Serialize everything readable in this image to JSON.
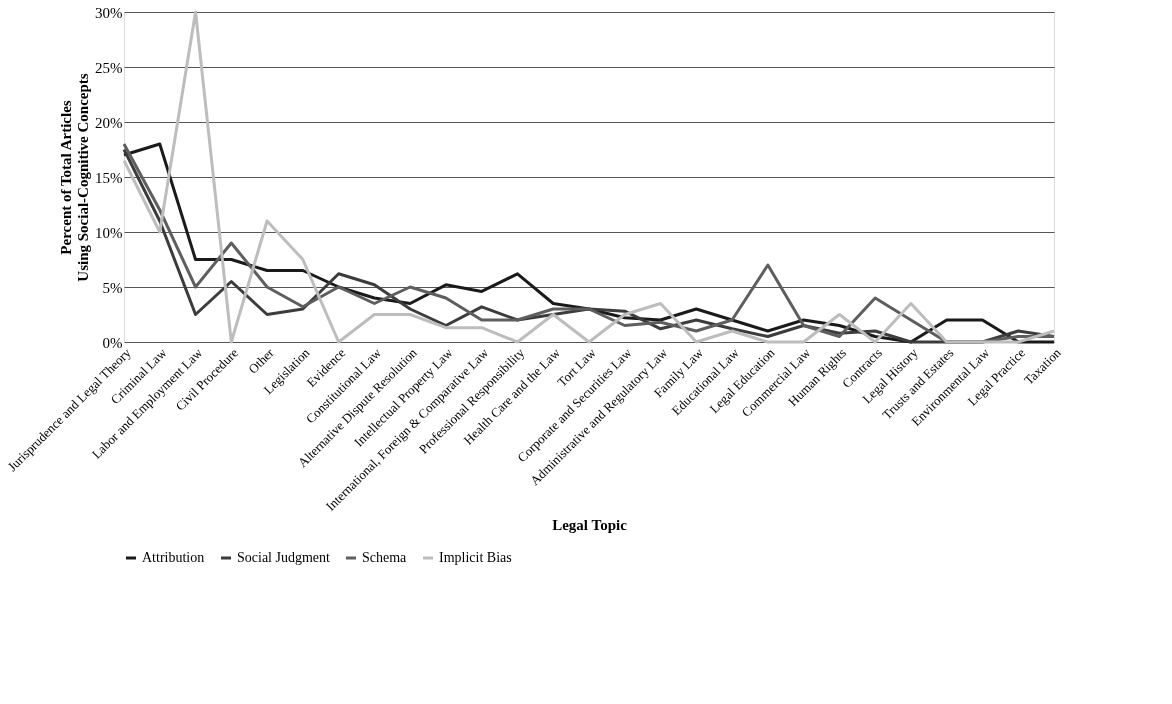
{
  "chart_data": {
    "type": "line",
    "xlabel": "Legal Topic",
    "ylabel": [
      "Percent of Total Articles",
      "Using Social-Cognitive Concepts"
    ],
    "categories": [
      "Jurisprudence and Legal Theory",
      "Criminal Law",
      "Labor and Employment Law",
      "Civil Procedure",
      "Other",
      "Legislation",
      "Evidence",
      "Constitutional Law",
      "Alternative Dispute Resolution",
      "Intellectual Property Law",
      "International, Foreign & Comparative Law",
      "Professional Responsibility",
      "Health Care and the Law",
      "Tort Law",
      "Corporate and Securities Law",
      "Administrative and Regulatory Law",
      "Family Law",
      "Educational Law",
      "Legal Education",
      "Commercial Law",
      "Human Rights",
      "Contracts",
      "Legal History",
      "Trusts and Estates",
      "Environmental Law",
      "Legal Practice",
      "Taxation"
    ],
    "series": [
      {
        "name": "Attribution",
        "color": "#1a1a1a",
        "values": [
          17,
          18,
          7.5,
          7.5,
          6.5,
          6.5,
          5,
          4,
          3.5,
          5.2,
          4.6,
          6.2,
          3.5,
          3,
          2.2,
          2,
          3,
          2,
          1,
          2,
          1.5,
          0.5,
          0,
          2,
          2,
          0,
          0
        ]
      },
      {
        "name": "Social Judgment",
        "color": "#3c3c3c",
        "values": [
          17.5,
          11,
          2.5,
          5.5,
          2.5,
          3,
          6.2,
          5.2,
          3,
          1.5,
          3.2,
          2,
          2.5,
          3,
          2.8,
          1.2,
          2,
          1.2,
          0.5,
          1.5,
          0.8,
          1,
          0,
          0,
          0,
          1,
          0.5
        ]
      },
      {
        "name": "Schema",
        "color": "#5e5e5e",
        "values": [
          18,
          12,
          5,
          9,
          5,
          3.2,
          5,
          3.5,
          5,
          4,
          2,
          2,
          3,
          3,
          1.5,
          1.8,
          1,
          2,
          7,
          1.5,
          0.5,
          4,
          2,
          0,
          0,
          0.5,
          0.5
        ]
      },
      {
        "name": "Implicit Bias",
        "color": "#bdbdbd",
        "values": [
          16.5,
          10,
          30,
          0,
          11,
          7.5,
          0,
          2.5,
          2.5,
          1.3,
          1.3,
          0,
          2.5,
          0,
          2.5,
          3.5,
          0,
          1,
          0,
          0,
          2.5,
          0,
          3.5,
          0,
          0,
          0,
          1
        ]
      }
    ],
    "ylim": [
      0,
      30
    ],
    "yticks": [
      {
        "value": 0,
        "label": "0%"
      },
      {
        "value": 5,
        "label": "5%"
      },
      {
        "value": 10,
        "label": "10%"
      },
      {
        "value": 15,
        "label": "15%"
      },
      {
        "value": 20,
        "label": "20%"
      },
      {
        "value": 25,
        "label": "25%"
      },
      {
        "value": 30,
        "label": "30%"
      }
    ],
    "grid": "y",
    "legend": "bottom",
    "marker": "none",
    "line_style": "solid"
  }
}
